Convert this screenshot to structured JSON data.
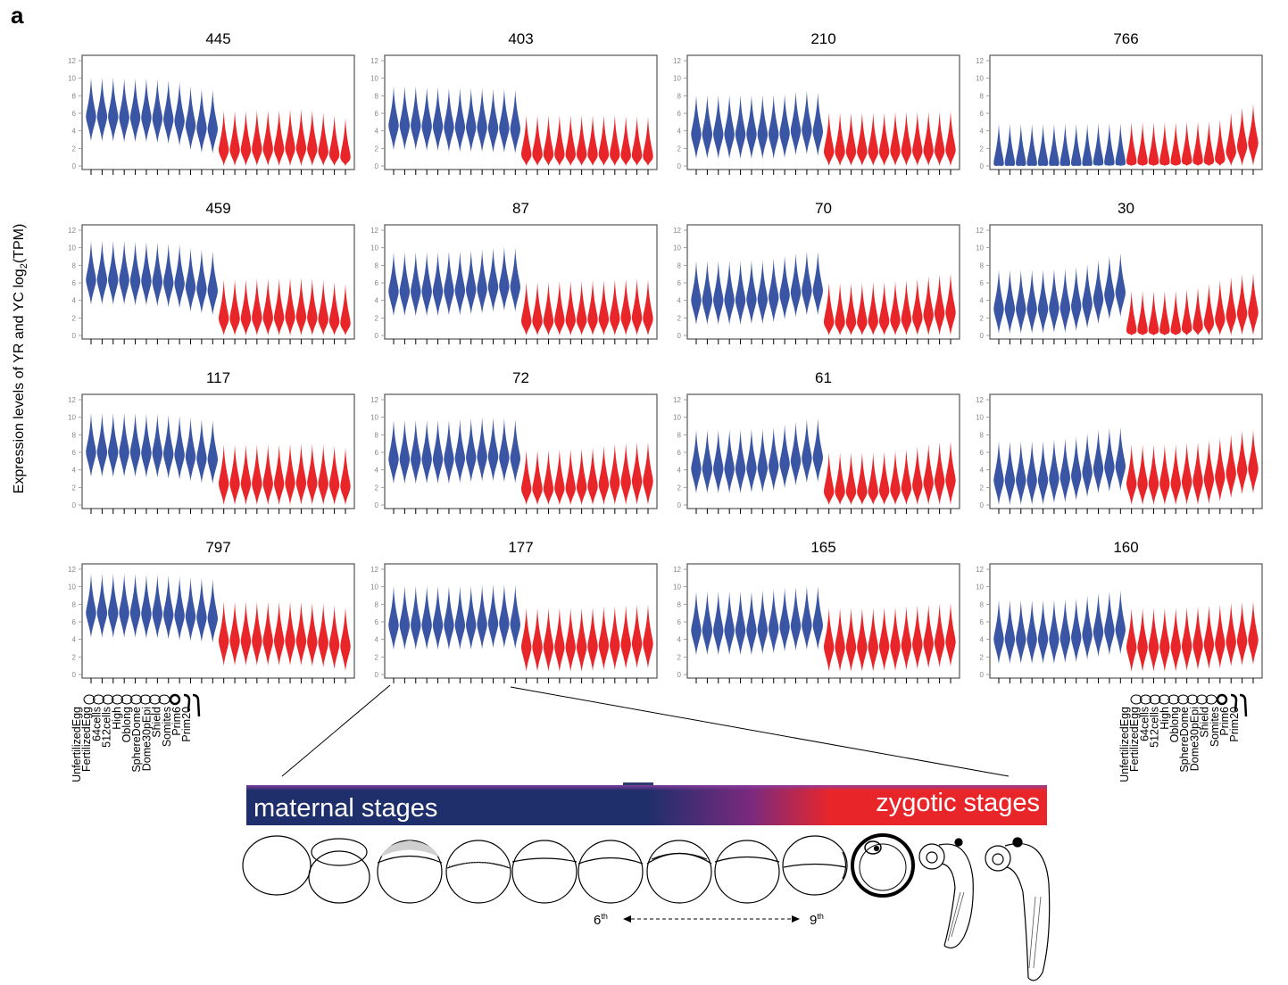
{
  "figure": {
    "panel_label": "a",
    "y_axis_label": "Expression levels of YR and YC log",
    "y_axis_label_sub": "2",
    "y_axis_label_tail": "(TPM)",
    "stage_labels": [
      "UnfertilizedEgg",
      "FertilizedEgg",
      "64cells",
      "512cells",
      "High",
      "Oblong",
      "SphereDome",
      "Dome30pEpi",
      "Shield",
      "Somites",
      "Prim6",
      "Prim20"
    ],
    "band": {
      "left_text": "maternal stages",
      "right_text": "zygotic stages"
    },
    "cycle": {
      "left": "6",
      "left_sup": "th",
      "right": "9",
      "right_sup": "th"
    }
  },
  "colors": {
    "maternal": "#3a55a4",
    "zygotic": "#e8262a",
    "band_dark": "#1f2f6b",
    "band_red": "#e8262a",
    "frame": "#555555"
  },
  "chart_data": {
    "type": "violin",
    "ylim": [
      0,
      12
    ],
    "yticks": [
      0,
      2,
      4,
      6,
      8,
      10,
      12
    ],
    "categories": [
      "UnfertilizedEgg",
      "FertilizedEgg",
      "64cells",
      "512cells",
      "High",
      "Oblong",
      "SphereDome",
      "Dome30pEpi",
      "Shield",
      "Somites",
      "Prim6",
      "Prim20"
    ],
    "groups": [
      "YR",
      "YC"
    ],
    "panels": [
      {
        "title": "445",
        "YR": [
          5.6,
          5.6,
          5.6,
          5.5,
          5.5,
          5.5,
          5.4,
          5.3,
          5.1,
          4.6,
          4.3,
          4.2
        ],
        "YC": [
          1.8,
          1.8,
          1.8,
          1.9,
          1.9,
          1.9,
          2.0,
          2.0,
          1.9,
          1.6,
          1.3,
          1.0
        ]
      },
      {
        "title": "403",
        "YR": [
          4.6,
          4.6,
          4.6,
          4.5,
          4.5,
          4.4,
          4.4,
          4.4,
          4.4,
          4.3,
          4.3,
          4.2
        ],
        "YC": [
          1.3,
          1.3,
          1.3,
          1.3,
          1.3,
          1.3,
          1.3,
          1.3,
          1.3,
          1.2,
          1.2,
          1.1
        ]
      },
      {
        "title": "210",
        "YR": [
          3.6,
          3.6,
          3.6,
          3.6,
          3.6,
          3.6,
          3.6,
          3.6,
          3.7,
          4.0,
          4.1,
          3.9
        ],
        "YC": [
          1.6,
          1.6,
          1.6,
          1.6,
          1.6,
          1.6,
          1.7,
          1.7,
          1.7,
          1.7,
          1.7,
          1.8
        ]
      },
      {
        "title": "766",
        "YR": [
          0.3,
          0.3,
          0.3,
          0.3,
          0.3,
          0.3,
          0.3,
          0.3,
          0.3,
          0.4,
          0.4,
          0.4
        ],
        "YC": [
          0.5,
          0.5,
          0.5,
          0.5,
          0.5,
          0.6,
          0.6,
          0.6,
          0.8,
          1.6,
          2.2,
          2.6
        ]
      },
      {
        "title": "459",
        "YR": [
          6.3,
          6.3,
          6.3,
          6.3,
          6.2,
          6.2,
          6.1,
          6.0,
          5.9,
          5.5,
          5.3,
          5.1
        ],
        "YC": [
          1.9,
          1.9,
          1.9,
          2.0,
          2.0,
          2.0,
          2.1,
          2.1,
          2.0,
          1.8,
          1.6,
          1.4
        ]
      },
      {
        "title": "87",
        "YR": [
          5.0,
          5.0,
          5.0,
          5.0,
          5.0,
          5.1,
          5.1,
          5.2,
          5.3,
          5.5,
          5.6,
          5.5
        ],
        "YC": [
          1.6,
          1.6,
          1.6,
          1.7,
          1.7,
          1.7,
          1.8,
          1.8,
          1.9,
          2.0,
          2.0,
          1.9
        ]
      },
      {
        "title": "70",
        "YR": [
          4.0,
          4.0,
          4.0,
          4.0,
          4.0,
          4.1,
          4.1,
          4.3,
          4.6,
          4.9,
          5.1,
          5.1
        ],
        "YC": [
          1.5,
          1.5,
          1.5,
          1.5,
          1.6,
          1.6,
          1.7,
          1.8,
          2.0,
          2.3,
          2.5,
          2.6
        ]
      },
      {
        "title": "30",
        "YR": [
          3.0,
          3.0,
          3.0,
          3.0,
          3.0,
          3.1,
          3.1,
          3.3,
          3.6,
          4.1,
          4.6,
          4.9
        ],
        "YC": [
          0.6,
          0.6,
          0.6,
          0.6,
          0.6,
          0.8,
          1.0,
          1.4,
          1.8,
          2.2,
          2.5,
          2.6
        ]
      },
      {
        "title": "117",
        "YR": [
          6.0,
          6.0,
          6.0,
          6.0,
          6.0,
          5.9,
          5.9,
          5.8,
          5.7,
          5.5,
          5.3,
          5.2
        ],
        "YC": [
          2.4,
          2.4,
          2.4,
          2.4,
          2.4,
          2.4,
          2.5,
          2.5,
          2.5,
          2.4,
          2.3,
          2.1
        ]
      },
      {
        "title": "72",
        "YR": [
          5.2,
          5.2,
          5.2,
          5.2,
          5.2,
          5.2,
          5.3,
          5.4,
          5.5,
          5.5,
          5.4,
          5.3
        ],
        "YC": [
          1.8,
          1.8,
          1.8,
          1.9,
          1.9,
          2.0,
          2.1,
          2.3,
          2.5,
          2.6,
          2.7,
          2.7
        ]
      },
      {
        "title": "61",
        "YR": [
          4.1,
          4.1,
          4.1,
          4.1,
          4.1,
          4.2,
          4.2,
          4.4,
          4.7,
          5.0,
          5.3,
          5.4
        ],
        "YC": [
          1.5,
          1.5,
          1.5,
          1.5,
          1.5,
          1.6,
          1.7,
          1.9,
          2.2,
          2.5,
          2.7,
          2.8
        ]
      },
      {
        "title": "",
        "YR": [
          2.8,
          2.8,
          2.8,
          2.8,
          2.8,
          3.0,
          3.1,
          3.3,
          3.7,
          4.1,
          4.3,
          4.4
        ],
        "YC": [
          2.4,
          2.4,
          2.4,
          2.4,
          2.4,
          2.6,
          2.7,
          2.9,
          3.2,
          3.6,
          4.0,
          4.1
        ]
      },
      {
        "title": "797",
        "YR": [
          7.0,
          7.0,
          7.0,
          7.0,
          7.0,
          6.9,
          6.9,
          6.8,
          6.7,
          6.6,
          6.5,
          6.4
        ],
        "YC": [
          3.8,
          3.8,
          3.8,
          3.8,
          3.8,
          3.8,
          3.8,
          3.8,
          3.7,
          3.6,
          3.4,
          3.2
        ]
      },
      {
        "title": "177",
        "YR": [
          5.6,
          5.6,
          5.6,
          5.6,
          5.6,
          5.6,
          5.6,
          5.6,
          5.7,
          5.8,
          5.8,
          5.7
        ],
        "YC": [
          3.1,
          3.1,
          3.1,
          3.1,
          3.1,
          3.1,
          3.2,
          3.3,
          3.3,
          3.4,
          3.5,
          3.5
        ]
      },
      {
        "title": "165",
        "YR": [
          5.0,
          5.0,
          5.0,
          5.0,
          5.0,
          5.0,
          5.1,
          5.2,
          5.4,
          5.5,
          5.6,
          5.6
        ],
        "YC": [
          3.1,
          3.1,
          3.1,
          3.1,
          3.1,
          3.2,
          3.2,
          3.3,
          3.4,
          3.5,
          3.6,
          3.7
        ]
      },
      {
        "title": "160",
        "YR": [
          4.0,
          4.0,
          4.0,
          4.0,
          4.0,
          4.0,
          4.1,
          4.2,
          4.5,
          4.8,
          5.0,
          5.1
        ],
        "YC": [
          3.1,
          3.1,
          3.1,
          3.1,
          3.1,
          3.2,
          3.3,
          3.4,
          3.5,
          3.7,
          3.8,
          3.9
        ]
      }
    ]
  }
}
